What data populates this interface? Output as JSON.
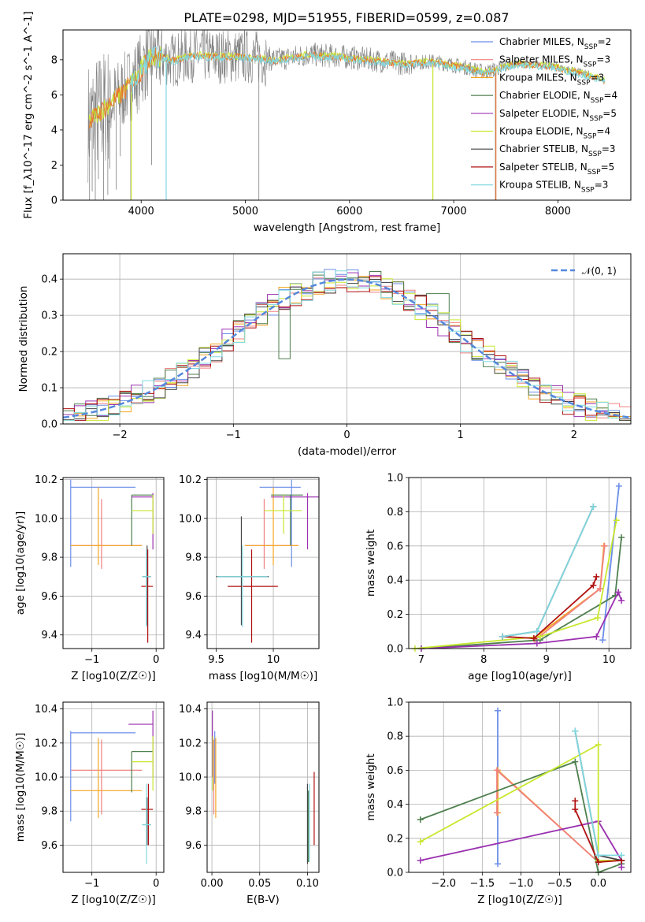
{
  "figure": {
    "title": "PLATE=0298, MJD=51955, FIBERID=0599, z=0.087"
  },
  "colors": {
    "Chabrier MILES": "#6a8ee8",
    "Salpeter MILES": "#f08080",
    "Kroupa MILES": "#f5a623",
    "Chabrier ELODIE": "#4e7f4e",
    "Salpeter ELODIE": "#9b30b0",
    "Kroupa ELODIE": "#c8e830",
    "Chabrier STELIB": "#444444",
    "Salpeter STELIB": "#b01010",
    "Kroupa STELIB": "#80d8e0",
    "observed": "#808080",
    "orange_model": "#e87830",
    "normal": "#5588dd"
  },
  "chart_data": [
    {
      "type": "line",
      "xlabel": "wavelength [Angstrom, rest frame]",
      "ylabel": "Flux [f_λ10^-17 erg cm^-2 s^-1 A^-1]",
      "xlim": [
        3250,
        8700
      ],
      "ylim": [
        0,
        9.7
      ],
      "xticks": [
        4000,
        5000,
        6000,
        7000,
        8000
      ],
      "yticks": [
        0,
        2,
        4,
        6,
        8
      ],
      "grid": false,
      "legend_position": "right",
      "legend": [
        {
          "label": "Chabrier MILES, N_SSP=2",
          "color_key": "Chabrier MILES"
        },
        {
          "label": "Salpeter MILES, N_SSP=3",
          "color_key": "Salpeter MILES"
        },
        {
          "label": "Kroupa MILES, N_SSP=3",
          "color_key": "Kroupa MILES"
        },
        {
          "label": "Chabrier ELODIE, N_SSP=4",
          "color_key": "Chabrier ELODIE"
        },
        {
          "label": "Salpeter ELODIE, N_SSP=5",
          "color_key": "Salpeter ELODIE"
        },
        {
          "label": "Kroupa ELODIE, N_SSP=4",
          "color_key": "Kroupa ELODIE"
        },
        {
          "label": "Chabrier STELIB, N_SSP=3",
          "color_key": "Chabrier STELIB"
        },
        {
          "label": "Salpeter STELIB, N_SSP=5",
          "color_key": "Salpeter STELIB"
        },
        {
          "label": "Kroupa STELIB, N_SSP=3",
          "color_key": "Kroupa STELIB"
        }
      ],
      "continuum": {
        "x": [
          3500,
          3650,
          3800,
          3950,
          4100,
          4300,
          4500,
          4700,
          5000,
          5300,
          5600,
          5900,
          6200,
          6500,
          6800,
          7100,
          7300,
          7600,
          7900,
          8200,
          8500
        ],
        "y": [
          4.5,
          5.3,
          6.0,
          7.0,
          8.3,
          8.0,
          8.3,
          8.2,
          8.2,
          8.0,
          8.3,
          8.2,
          8.0,
          7.8,
          7.9,
          7.6,
          7.3,
          7.8,
          7.7,
          7.3,
          6.8
        ]
      },
      "spikes": {
        "x": [
          3505,
          3530,
          3560,
          3590,
          3640,
          3680,
          3700,
          3760,
          3800,
          3900,
          4100,
          4240,
          5130,
          6800,
          7400
        ],
        "y": [
          0,
          0.5,
          0,
          1.2,
          0,
          0.3,
          1.8,
          0.6,
          2.5,
          0,
          2.0,
          0,
          0,
          0,
          0
        ]
      }
    },
    {
      "type": "histogram",
      "xlabel": "(data-model)/error",
      "ylabel": "Normed distribution",
      "xlim": [
        -2.5,
        2.5
      ],
      "ylim": [
        0,
        0.47
      ],
      "xticks": [
        -2,
        -1,
        0,
        1,
        2
      ],
      "yticks": [
        0.0,
        0.1,
        0.2,
        0.3,
        0.4
      ],
      "grid": true,
      "legend_position": "upper right",
      "legend": [
        {
          "label": "𝒩(0, 1)",
          "color_key": "normal"
        }
      ],
      "bin_width": 0.1,
      "bin_start": -2.5,
      "gaussian": {
        "mean": 0,
        "sigma": 1
      }
    },
    {
      "type": "scatter",
      "name": "age-vs-Z",
      "xlabel": "Z [log10(Z/Z☉)]",
      "ylabel": "age  [log10(age/yr)]",
      "xlim": [
        -1.45,
        0.12
      ],
      "ylim": [
        9.33,
        10.21
      ],
      "xticks": [
        -1,
        0
      ],
      "yticks": [
        9.4,
        9.6,
        9.8,
        10.0,
        10.2
      ],
      "grid": true,
      "points": [
        {
          "key": "Chabrier MILES",
          "x": -1.33,
          "xlo": -1.33,
          "xhi": -0.32,
          "y": 10.16,
          "ylo": 9.75,
          "yhi": 10.2
        },
        {
          "key": "Salpeter MILES",
          "x": -0.85,
          "xlo": -1.32,
          "xhi": -0.22,
          "y": 9.86,
          "ylo": 9.74,
          "yhi": 10.1
        },
        {
          "key": "Kroupa MILES",
          "x": -0.9,
          "xlo": -1.33,
          "xhi": -0.22,
          "y": 9.86,
          "ylo": 9.76,
          "yhi": 10.16
        },
        {
          "key": "Chabrier ELODIE",
          "x": -0.38,
          "xlo": -0.38,
          "xhi": -0.05,
          "y": 10.12,
          "ylo": 9.86,
          "yhi": 10.12
        },
        {
          "key": "Salpeter ELODIE",
          "x": -0.05,
          "xlo": -0.38,
          "xhi": -0.05,
          "y": 10.11,
          "ylo": 9.84,
          "yhi": 10.13
        },
        {
          "key": "Kroupa ELODIE",
          "x": -0.05,
          "xlo": -0.38,
          "xhi": -0.05,
          "y": 10.04,
          "ylo": 9.92,
          "yhi": 10.12
        },
        {
          "key": "Chabrier STELIB",
          "x": -0.14,
          "xlo": -0.21,
          "xhi": -0.08,
          "y": 9.7,
          "ylo": 9.45,
          "yhi": 9.86
        },
        {
          "key": "Salpeter STELIB",
          "x": -0.13,
          "xlo": -0.23,
          "xhi": -0.05,
          "y": 9.65,
          "ylo": 9.36,
          "yhi": 9.84
        },
        {
          "key": "Kroupa STELIB",
          "x": -0.15,
          "xlo": -0.22,
          "xhi": -0.08,
          "y": 9.7,
          "ylo": 9.44,
          "yhi": 9.84
        }
      ]
    },
    {
      "type": "scatter",
      "name": "age-vs-mass",
      "xlabel": "mass [log10(M/M☉)]",
      "ylabel": "",
      "xlim": [
        9.42,
        10.4
      ],
      "ylim": [
        9.33,
        10.21
      ],
      "xticks": [
        9.5,
        10.0
      ],
      "yticks": [
        9.4,
        9.6,
        9.8,
        10.0,
        10.2
      ],
      "grid": true,
      "points": [
        {
          "key": "Chabrier MILES",
          "x": 10.16,
          "xlo": 9.88,
          "xhi": 10.24,
          "y": 10.16,
          "ylo": 9.75,
          "yhi": 10.2
        },
        {
          "key": "Salpeter MILES",
          "x": 9.92,
          "xlo": 9.75,
          "xhi": 10.22,
          "y": 9.86,
          "ylo": 9.74,
          "yhi": 10.1
        },
        {
          "key": "Kroupa MILES",
          "x": 10.0,
          "xlo": 9.75,
          "xhi": 10.22,
          "y": 9.86,
          "ylo": 9.76,
          "yhi": 10.16
        },
        {
          "key": "Chabrier ELODIE",
          "x": 10.15,
          "xlo": 9.98,
          "xhi": 10.26,
          "y": 10.12,
          "ylo": 9.86,
          "yhi": 10.12
        },
        {
          "key": "Salpeter ELODIE",
          "x": 10.3,
          "xlo": 9.98,
          "xhi": 10.4,
          "y": 10.11,
          "ylo": 9.84,
          "yhi": 10.13
        },
        {
          "key": "Kroupa ELODIE",
          "x": 10.09,
          "xlo": 9.92,
          "xhi": 10.25,
          "y": 10.04,
          "ylo": 9.92,
          "yhi": 10.12
        },
        {
          "key": "Chabrier STELIB",
          "x": 9.72,
          "xlo": 9.5,
          "xhi": 9.96,
          "y": 9.7,
          "ylo": 9.45,
          "yhi": 10.01
        },
        {
          "key": "Salpeter STELIB",
          "x": 9.81,
          "xlo": 9.6,
          "xhi": 10.04,
          "y": 9.65,
          "ylo": 9.36,
          "yhi": 9.84
        },
        {
          "key": "Kroupa STELIB",
          "x": 9.73,
          "xlo": 9.51,
          "xhi": 9.95,
          "y": 9.7,
          "ylo": 9.44,
          "yhi": 9.86
        }
      ]
    },
    {
      "type": "line",
      "name": "weight-vs-age",
      "xlabel": "age  [log10(age/yr)]",
      "ylabel": "mass weight",
      "xlim": [
        6.8,
        10.35
      ],
      "ylim": [
        0,
        1.0
      ],
      "xticks": [
        7,
        8,
        9,
        10
      ],
      "yticks": [
        0.0,
        0.2,
        0.4,
        0.6,
        0.8,
        1.0
      ],
      "grid": true,
      "series": [
        {
          "key": "Chabrier MILES",
          "x": [
            9.9,
            10.16
          ],
          "y": [
            0.05,
            0.95
          ]
        },
        {
          "key": "Kroupa MILES",
          "x": [
            8.8,
            9.86,
            9.92
          ],
          "y": [
            0.06,
            0.35,
            0.6
          ]
        },
        {
          "key": "Salpeter MILES",
          "x": [
            8.82,
            9.86,
            9.93
          ],
          "y": [
            0.05,
            0.35,
            0.6
          ]
        },
        {
          "key": "Chabrier ELODIE",
          "x": [
            7.0,
            8.9,
            10.1,
            10.2
          ],
          "y": [
            0.0,
            0.05,
            0.31,
            0.65
          ]
        },
        {
          "key": "Salpeter ELODIE",
          "x": [
            7.0,
            8.85,
            9.8,
            10.15,
            10.2
          ],
          "y": [
            0.0,
            0.03,
            0.07,
            0.33,
            0.28
          ]
        },
        {
          "key": "Kroupa ELODIE",
          "x": [
            6.9,
            8.9,
            9.82,
            10.12
          ],
          "y": [
            0.0,
            0.07,
            0.18,
            0.75
          ]
        },
        {
          "key": "Chabrier STELIB",
          "x": [
            8.3,
            8.85,
            9.75
          ],
          "y": [
            0.07,
            0.1,
            0.83
          ]
        },
        {
          "key": "Salpeter STELIB",
          "x": [
            8.3,
            8.8,
            9.75,
            9.8
          ],
          "y": [
            0.07,
            0.06,
            0.37,
            0.42
          ]
        },
        {
          "key": "Kroupa STELIB",
          "x": [
            8.3,
            8.85,
            9.75
          ],
          "y": [
            0.07,
            0.1,
            0.83
          ]
        }
      ]
    },
    {
      "type": "scatter",
      "name": "mass-vs-Z",
      "xlabel": "Z [log10(Z/Z☉)]",
      "ylabel": "mass [log10(M/M☉)]",
      "xlim": [
        -1.45,
        0.12
      ],
      "ylim": [
        9.44,
        10.44
      ],
      "xticks": [
        -1,
        0
      ],
      "yticks": [
        9.6,
        9.8,
        10.0,
        10.2,
        10.4
      ],
      "grid": true,
      "points": [
        {
          "key": "Chabrier MILES",
          "x": -1.33,
          "xlo": -1.33,
          "xhi": -0.32,
          "y": 10.26,
          "ylo": 9.74,
          "yhi": 10.27
        },
        {
          "key": "Salpeter MILES",
          "x": -0.85,
          "xlo": -1.32,
          "xhi": -0.22,
          "y": 10.04,
          "ylo": 9.78,
          "yhi": 10.22
        },
        {
          "key": "Kroupa MILES",
          "x": -0.9,
          "xlo": -1.33,
          "xhi": -0.22,
          "y": 9.92,
          "ylo": 9.76,
          "yhi": 10.23
        },
        {
          "key": "Chabrier ELODIE",
          "x": -0.38,
          "xlo": -0.38,
          "xhi": -0.05,
          "y": 10.15,
          "ylo": 9.91,
          "yhi": 10.15
        },
        {
          "key": "Salpeter ELODIE",
          "x": -0.05,
          "xlo": -0.43,
          "xhi": -0.05,
          "y": 10.31,
          "ylo": 10.0,
          "yhi": 10.39
        },
        {
          "key": "Kroupa ELODIE",
          "x": -0.05,
          "xlo": -0.38,
          "xhi": -0.05,
          "y": 10.09,
          "ylo": 9.92,
          "yhi": 10.24
        },
        {
          "key": "Chabrier STELIB",
          "x": -0.14,
          "xlo": -0.21,
          "xhi": -0.08,
          "y": 9.72,
          "ylo": 9.6,
          "yhi": 9.88
        },
        {
          "key": "Salpeter STELIB",
          "x": -0.12,
          "xlo": -0.23,
          "xhi": -0.05,
          "y": 9.81,
          "ylo": 9.6,
          "yhi": 9.96
        },
        {
          "key": "Kroupa STELIB",
          "x": -0.15,
          "xlo": -0.22,
          "xhi": -0.08,
          "y": 9.72,
          "ylo": 9.49,
          "yhi": 9.96
        }
      ]
    },
    {
      "type": "scatter",
      "name": "mass-vs-EBV",
      "xlabel": "E(B-V)",
      "ylabel": "",
      "xlim": [
        -0.005,
        0.112
      ],
      "ylim": [
        9.44,
        10.44
      ],
      "xticks": [
        0.0,
        0.05,
        0.1
      ],
      "xtick_labels": [
        "0.00",
        "0.05",
        "0.10"
      ],
      "yticks": [
        9.6,
        9.8,
        10.0,
        10.2,
        10.4
      ],
      "grid": true,
      "points": [
        {
          "key": "Chabrier MILES",
          "x": 0.003,
          "y": 10.26,
          "ylo": 9.96,
          "yhi": 10.27
        },
        {
          "key": "Salpeter MILES",
          "x": 0.002,
          "y": 10.04,
          "ylo": 9.78,
          "yhi": 10.22
        },
        {
          "key": "Kroupa MILES",
          "x": 0.004,
          "y": 9.92,
          "ylo": 9.76,
          "yhi": 10.23
        },
        {
          "key": "Salpeter ELODIE",
          "x": 0.0005,
          "y": 10.31,
          "ylo": 10.0,
          "yhi": 10.39
        },
        {
          "key": "Kroupa ELODIE",
          "x": 0.001,
          "y": 10.09,
          "ylo": 9.92,
          "yhi": 10.24
        },
        {
          "key": "Chabrier STELIB",
          "x": 0.1,
          "y": 9.72,
          "ylo": 9.49,
          "yhi": 9.96
        },
        {
          "key": "Chabrier ELODIE",
          "x": 0.101,
          "y": 9.72,
          "ylo": 9.5,
          "yhi": 9.92
        },
        {
          "key": "Salpeter STELIB",
          "x": 0.107,
          "y": 9.81,
          "ylo": 9.6,
          "yhi": 10.03
        },
        {
          "key": "Kroupa STELIB",
          "x": 0.102,
          "y": 9.72,
          "ylo": 9.5,
          "yhi": 9.96
        }
      ]
    },
    {
      "type": "line",
      "name": "weight-vs-Z",
      "xlabel": "Z [log10(Z/Z☉)]",
      "ylabel": "mass weight",
      "xlim": [
        -2.45,
        0.42
      ],
      "ylim": [
        0,
        1.0
      ],
      "xticks": [
        -2.0,
        -1.5,
        -1.0,
        -0.5,
        0.0
      ],
      "xtick_labels": [
        "−2.0",
        "−1.5",
        "−1.0",
        "−0.5",
        "0.0"
      ],
      "yticks": [
        0.0,
        0.2,
        0.4,
        0.6,
        0.8,
        1.0
      ],
      "grid": true,
      "series": [
        {
          "key": "Chabrier MILES",
          "x": [
            -1.3,
            -1.3
          ],
          "y": [
            0.05,
            0.95
          ]
        },
        {
          "key": "Kroupa MILES",
          "x": [
            -1.3,
            -1.3,
            0.0
          ],
          "y": [
            0.35,
            0.6,
            0.06
          ]
        },
        {
          "key": "Salpeter MILES",
          "x": [
            -1.31,
            -1.31,
            0.0
          ],
          "y": [
            0.35,
            0.6,
            0.06
          ]
        },
        {
          "key": "Chabrier ELODIE",
          "x": [
            -2.3,
            -0.3,
            0.0,
            0.3
          ],
          "y": [
            0.31,
            0.65,
            0.0,
            0.05
          ]
        },
        {
          "key": "Salpeter ELODIE",
          "x": [
            -2.3,
            0.0,
            0.3,
            0.3
          ],
          "y": [
            0.07,
            0.3,
            0.07,
            0.03
          ]
        },
        {
          "key": "Kroupa ELODIE",
          "x": [
            -2.3,
            0.0,
            0.0,
            0.3
          ],
          "y": [
            0.18,
            0.75,
            0.07,
            0.07
          ]
        },
        {
          "key": "Chabrier STELIB",
          "x": [
            -0.3,
            0.0,
            0.3
          ],
          "y": [
            0.83,
            0.1,
            0.07
          ]
        },
        {
          "key": "Salpeter STELIB",
          "x": [
            -0.3,
            -0.3,
            0.0,
            0.3
          ],
          "y": [
            0.42,
            0.37,
            0.06,
            0.07
          ]
        },
        {
          "key": "Kroupa STELIB",
          "x": [
            -0.3,
            0.0,
            0.3
          ],
          "y": [
            0.83,
            0.1,
            0.1
          ]
        }
      ]
    }
  ]
}
